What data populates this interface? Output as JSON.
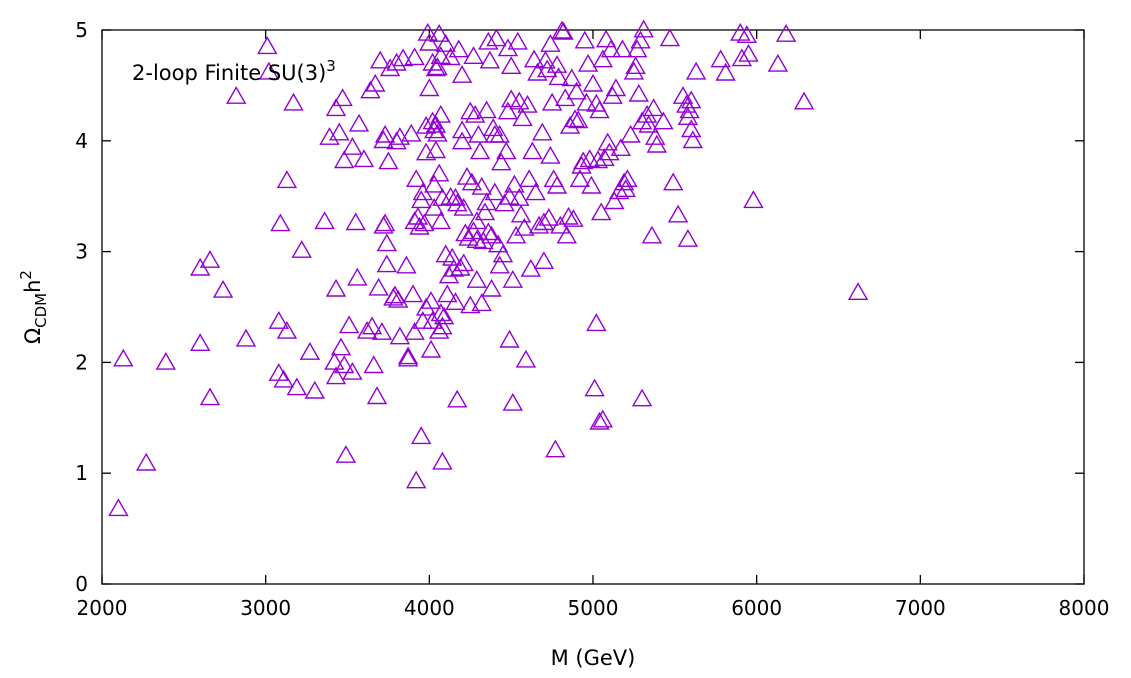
{
  "chart_data": {
    "type": "scatter",
    "title": "",
    "annotation": {
      "text": "2-loop Finite SU(3)",
      "sup": "3"
    },
    "xlabel": "M (GeV)",
    "ylabel": {
      "base": "Ω",
      "sub": "CDM",
      "mid": "h",
      "sup": "2"
    },
    "xlim": [
      2000,
      8000
    ],
    "ylim": [
      0,
      5
    ],
    "xticks": [
      2000,
      3000,
      4000,
      5000,
      6000,
      7000,
      8000
    ],
    "yticks": [
      0,
      1,
      2,
      3,
      4,
      5
    ],
    "grid": false,
    "marker": "triangle-open",
    "color": "#9400d3",
    "points": [
      [
        2100,
        0.68
      ],
      [
        2130,
        2.03
      ],
      [
        2270,
        1.09
      ],
      [
        2390,
        2.0
      ],
      [
        2600,
        2.85
      ],
      [
        2600,
        2.17
      ],
      [
        2660,
        2.92
      ],
      [
        2660,
        1.68
      ],
      [
        2740,
        2.65
      ],
      [
        2820,
        4.4
      ],
      [
        2880,
        2.21
      ],
      [
        3010,
        4.85
      ],
      [
        3020,
        4.62
      ],
      [
        3080,
        1.9
      ],
      [
        3080,
        2.37
      ],
      [
        3090,
        3.25
      ],
      [
        3110,
        1.84
      ],
      [
        3130,
        3.64
      ],
      [
        3130,
        2.28
      ],
      [
        3170,
        4.34
      ],
      [
        3190,
        1.77
      ],
      [
        3220,
        3.01
      ],
      [
        3270,
        2.09
      ],
      [
        3300,
        1.74
      ],
      [
        3360,
        3.27
      ],
      [
        3390,
        4.03
      ],
      [
        3420,
        2.0
      ],
      [
        3430,
        4.29
      ],
      [
        3430,
        2.66
      ],
      [
        3430,
        1.87
      ],
      [
        3450,
        4.07
      ],
      [
        3460,
        2.13
      ],
      [
        3470,
        4.38
      ],
      [
        3480,
        3.82
      ],
      [
        3480,
        1.97
      ],
      [
        3490,
        1.16
      ],
      [
        3510,
        2.33
      ],
      [
        3530,
        3.94
      ],
      [
        3530,
        1.91
      ],
      [
        3550,
        3.26
      ],
      [
        3560,
        2.76
      ],
      [
        3570,
        4.15
      ],
      [
        3600,
        3.83
      ],
      [
        3620,
        2.28
      ],
      [
        3640,
        4.45
      ],
      [
        3650,
        2.32
      ],
      [
        3660,
        1.97
      ],
      [
        3670,
        4.51
      ],
      [
        3680,
        1.69
      ],
      [
        3690,
        2.67
      ],
      [
        3700,
        4.72
      ],
      [
        3710,
        2.27
      ],
      [
        3720,
        4.0
      ],
      [
        3720,
        3.23
      ],
      [
        3730,
        4.05
      ],
      [
        3730,
        3.25
      ],
      [
        3740,
        3.07
      ],
      [
        3740,
        2.88
      ],
      [
        3750,
        3.81
      ],
      [
        3760,
        4.65
      ],
      [
        3780,
        2.58
      ],
      [
        3790,
        2.6
      ],
      [
        3800,
        4.7
      ],
      [
        3800,
        3.99
      ],
      [
        3810,
        2.56
      ],
      [
        3820,
        4.03
      ],
      [
        3820,
        2.23
      ],
      [
        3840,
        4.74
      ],
      [
        3860,
        2.87
      ],
      [
        3870,
        2.03
      ],
      [
        3870,
        2.05
      ],
      [
        3890,
        4.06
      ],
      [
        3900,
        2.61
      ],
      [
        3910,
        3.27
      ],
      [
        3910,
        2.27
      ],
      [
        3910,
        4.75
      ],
      [
        3920,
        3.65
      ],
      [
        3920,
        0.93
      ],
      [
        3930,
        3.31
      ],
      [
        3940,
        3.22
      ],
      [
        3950,
        1.33
      ],
      [
        3950,
        3.46
      ],
      [
        3960,
        2.37
      ],
      [
        3960,
        3.53
      ],
      [
        3970,
        3.25
      ],
      [
        3980,
        2.49
      ],
      [
        3980,
        4.13
      ],
      [
        3980,
        3.89
      ],
      [
        3990,
        4.97
      ],
      [
        4000,
        4.47
      ],
      [
        4000,
        4.88
      ],
      [
        4010,
        2.11
      ],
      [
        4010,
        2.55
      ],
      [
        4020,
        4.17
      ],
      [
        4020,
        2.37
      ],
      [
        4020,
        4.7
      ],
      [
        4030,
        3.6
      ],
      [
        4030,
        4.09
      ],
      [
        4030,
        3.39
      ],
      [
        4040,
        4.14
      ],
      [
        4040,
        3.91
      ],
      [
        4040,
        4.65
      ],
      [
        4050,
        4.66
      ],
      [
        4050,
        4.06
      ],
      [
        4060,
        3.7
      ],
      [
        4060,
        4.96
      ],
      [
        4060,
        2.28
      ],
      [
        4070,
        4.23
      ],
      [
        4070,
        3.27
      ],
      [
        4070,
        4.76
      ],
      [
        4070,
        2.44
      ],
      [
        4080,
        1.1
      ],
      [
        4080,
        2.32
      ],
      [
        4080,
        3.48
      ],
      [
        4090,
        2.41
      ],
      [
        4100,
        2.97
      ],
      [
        4100,
        4.87
      ],
      [
        4110,
        2.61
      ],
      [
        4120,
        2.78
      ],
      [
        4130,
        4.75
      ],
      [
        4130,
        3.49
      ],
      [
        4140,
        2.94
      ],
      [
        4150,
        2.84
      ],
      [
        4160,
        2.54
      ],
      [
        4160,
        3.48
      ],
      [
        4170,
        1.66
      ],
      [
        4170,
        3.43
      ],
      [
        4180,
        4.82
      ],
      [
        4190,
        2.85
      ],
      [
        4200,
        4.59
      ],
      [
        4200,
        3.99
      ],
      [
        4200,
        4.09
      ],
      [
        4210,
        2.89
      ],
      [
        4210,
        3.39
      ],
      [
        4220,
        3.16
      ],
      [
        4230,
        3.67
      ],
      [
        4240,
        3.12
      ],
      [
        4250,
        4.26
      ],
      [
        4250,
        2.51
      ],
      [
        4260,
        3.62
      ],
      [
        4270,
        4.76
      ],
      [
        4270,
        3.18
      ],
      [
        4280,
        4.23
      ],
      [
        4290,
        3.1
      ],
      [
        4290,
        2.74
      ],
      [
        4290,
        3.27
      ],
      [
        4300,
        4.05
      ],
      [
        4310,
        3.9
      ],
      [
        4320,
        3.58
      ],
      [
        4320,
        2.53
      ],
      [
        4330,
        3.09
      ],
      [
        4340,
        3.35
      ],
      [
        4350,
        4.27
      ],
      [
        4350,
        3.44
      ],
      [
        4360,
        4.89
      ],
      [
        4360,
        3.17
      ],
      [
        4370,
        4.72
      ],
      [
        4380,
        3.14
      ],
      [
        4380,
        2.66
      ],
      [
        4390,
        4.11
      ],
      [
        4400,
        3.53
      ],
      [
        4400,
        4.05
      ],
      [
        4410,
        4.92
      ],
      [
        4420,
        3.06
      ],
      [
        4430,
        4.05
      ],
      [
        4430,
        2.87
      ],
      [
        4440,
        3.8
      ],
      [
        4450,
        2.97
      ],
      [
        4460,
        3.43
      ],
      [
        4470,
        3.9
      ],
      [
        4480,
        4.83
      ],
      [
        4480,
        4.26
      ],
      [
        4490,
        2.2
      ],
      [
        4490,
        3.49
      ],
      [
        4500,
        4.67
      ],
      [
        4500,
        4.37
      ],
      [
        4510,
        2.74
      ],
      [
        4510,
        1.63
      ],
      [
        4520,
        3.6
      ],
      [
        4530,
        3.14
      ],
      [
        4540,
        4.89
      ],
      [
        4550,
        4.35
      ],
      [
        4550,
        3.48
      ],
      [
        4560,
        3.33
      ],
      [
        4570,
        4.2
      ],
      [
        4580,
        3.21
      ],
      [
        4590,
        2.02
      ],
      [
        4600,
        4.32
      ],
      [
        4610,
        3.65
      ],
      [
        4620,
        2.84
      ],
      [
        4630,
        3.9
      ],
      [
        4640,
        4.73
      ],
      [
        4650,
        3.53
      ],
      [
        4660,
        4.61
      ],
      [
        4670,
        3.23
      ],
      [
        4690,
        4.07
      ],
      [
        4700,
        2.91
      ],
      [
        4700,
        3.26
      ],
      [
        4710,
        4.72
      ],
      [
        4720,
        4.64
      ],
      [
        4730,
        3.3
      ],
      [
        4740,
        4.87
      ],
      [
        4740,
        3.86
      ],
      [
        4750,
        4.34
      ],
      [
        4760,
        3.65
      ],
      [
        4770,
        1.21
      ],
      [
        4780,
        4.68
      ],
      [
        4780,
        3.59
      ],
      [
        4790,
        4.57
      ],
      [
        4800,
        3.23
      ],
      [
        4810,
        4.99
      ],
      [
        4820,
        4.98
      ],
      [
        4830,
        4.38
      ],
      [
        4840,
        3.14
      ],
      [
        4850,
        3.31
      ],
      [
        4860,
        4.13
      ],
      [
        4870,
        4.56
      ],
      [
        4880,
        3.29
      ],
      [
        4890,
        4.19
      ],
      [
        4900,
        4.44
      ],
      [
        4910,
        4.18
      ],
      [
        4920,
        3.65
      ],
      [
        4930,
        3.77
      ],
      [
        4940,
        3.81
      ],
      [
        4950,
        4.9
      ],
      [
        4960,
        4.34
      ],
      [
        4970,
        4.69
      ],
      [
        4980,
        3.83
      ],
      [
        4990,
        3.59
      ],
      [
        5000,
        4.51
      ],
      [
        5010,
        1.76
      ],
      [
        5020,
        4.33
      ],
      [
        5020,
        2.35
      ],
      [
        5030,
        3.82
      ],
      [
        5040,
        4.27
      ],
      [
        5040,
        1.46
      ],
      [
        5050,
        3.35
      ],
      [
        5060,
        1.48
      ],
      [
        5060,
        4.73
      ],
      [
        5070,
        3.84
      ],
      [
        5080,
        4.91
      ],
      [
        5090,
        3.98
      ],
      [
        5100,
        3.89
      ],
      [
        5110,
        4.82
      ],
      [
        5120,
        4.4
      ],
      [
        5130,
        3.45
      ],
      [
        5140,
        4.47
      ],
      [
        5160,
        3.54
      ],
      [
        5170,
        3.93
      ],
      [
        5180,
        4.82
      ],
      [
        5190,
        3.62
      ],
      [
        5200,
        3.56
      ],
      [
        5210,
        3.65
      ],
      [
        5230,
        4.05
      ],
      [
        5250,
        4.62
      ],
      [
        5260,
        4.67
      ],
      [
        5270,
        4.82
      ],
      [
        5280,
        4.42
      ],
      [
        5290,
        4.9
      ],
      [
        5300,
        4.17
      ],
      [
        5300,
        1.67
      ],
      [
        5310,
        5.0
      ],
      [
        5330,
        4.23
      ],
      [
        5340,
        4.14
      ],
      [
        5360,
        3.14
      ],
      [
        5370,
        4.29
      ],
      [
        5380,
        4.03
      ],
      [
        5390,
        3.96
      ],
      [
        5430,
        4.17
      ],
      [
        5470,
        4.92
      ],
      [
        5490,
        3.62
      ],
      [
        5520,
        3.33
      ],
      [
        5550,
        4.4
      ],
      [
        5570,
        4.32
      ],
      [
        5580,
        3.11
      ],
      [
        5580,
        4.21
      ],
      [
        5590,
        4.27
      ],
      [
        5600,
        4.36
      ],
      [
        5600,
        4.1
      ],
      [
        5610,
        4.0
      ],
      [
        5630,
        4.62
      ],
      [
        5780,
        4.73
      ],
      [
        5810,
        4.61
      ],
      [
        5900,
        4.97
      ],
      [
        5910,
        4.74
      ],
      [
        5940,
        4.95
      ],
      [
        5950,
        4.78
      ],
      [
        5980,
        3.46
      ],
      [
        6130,
        4.69
      ],
      [
        6180,
        4.96
      ],
      [
        6290,
        4.35
      ],
      [
        6620,
        2.63
      ]
    ]
  }
}
